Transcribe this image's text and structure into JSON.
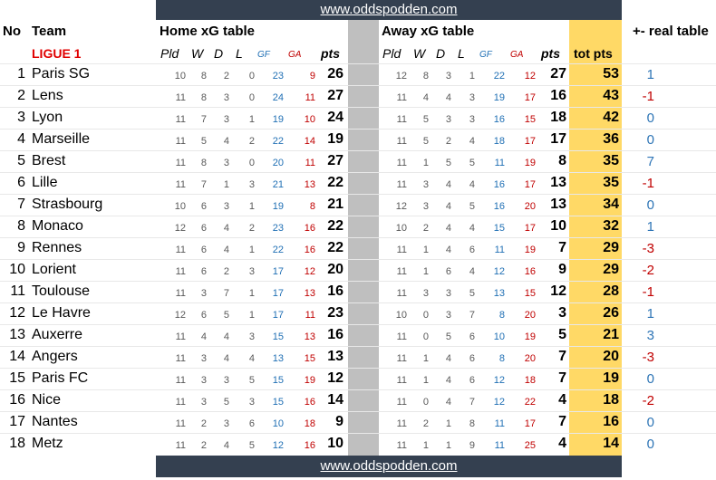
{
  "site": "www.oddspodden.com",
  "headers": {
    "no": "No",
    "team": "Team",
    "home": "Home xG table",
    "away": "Away xG table",
    "real": "+- real table"
  },
  "league": "LIGUE 1",
  "subheaders": {
    "pld": "Pld",
    "w": "W",
    "d": "D",
    "l": "L",
    "gf": "GF",
    "ga": "GA",
    "pts": "pts",
    "tot": "tot pts"
  },
  "rows": [
    {
      "no": "1",
      "team": "Paris SG",
      "h": [
        "10",
        "8",
        "2",
        "0",
        "23",
        "9",
        "26"
      ],
      "a": [
        "12",
        "8",
        "3",
        "1",
        "22",
        "12",
        "27"
      ],
      "tot": "53",
      "diff": "1"
    },
    {
      "no": "2",
      "team": "Lens",
      "h": [
        "11",
        "8",
        "3",
        "0",
        "24",
        "11",
        "27"
      ],
      "a": [
        "11",
        "4",
        "4",
        "3",
        "19",
        "17",
        "16"
      ],
      "tot": "43",
      "diff": "-1"
    },
    {
      "no": "3",
      "team": "Lyon",
      "h": [
        "11",
        "7",
        "3",
        "1",
        "19",
        "10",
        "24"
      ],
      "a": [
        "11",
        "5",
        "3",
        "3",
        "16",
        "15",
        "18"
      ],
      "tot": "42",
      "diff": "0"
    },
    {
      "no": "4",
      "team": "Marseille",
      "h": [
        "11",
        "5",
        "4",
        "2",
        "22",
        "14",
        "19"
      ],
      "a": [
        "11",
        "5",
        "2",
        "4",
        "18",
        "17",
        "17"
      ],
      "tot": "36",
      "diff": "0"
    },
    {
      "no": "5",
      "team": "Brest",
      "h": [
        "11",
        "8",
        "3",
        "0",
        "20",
        "11",
        "27"
      ],
      "a": [
        "11",
        "1",
        "5",
        "5",
        "11",
        "19",
        "8"
      ],
      "tot": "35",
      "diff": "7"
    },
    {
      "no": "6",
      "team": "Lille",
      "h": [
        "11",
        "7",
        "1",
        "3",
        "21",
        "13",
        "22"
      ],
      "a": [
        "11",
        "3",
        "4",
        "4",
        "16",
        "17",
        "13"
      ],
      "tot": "35",
      "diff": "-1"
    },
    {
      "no": "7",
      "team": "Strasbourg",
      "h": [
        "10",
        "6",
        "3",
        "1",
        "19",
        "8",
        "21"
      ],
      "a": [
        "12",
        "3",
        "4",
        "5",
        "16",
        "20",
        "13"
      ],
      "tot": "34",
      "diff": "0"
    },
    {
      "no": "8",
      "team": "Monaco",
      "h": [
        "12",
        "6",
        "4",
        "2",
        "23",
        "16",
        "22"
      ],
      "a": [
        "10",
        "2",
        "4",
        "4",
        "15",
        "17",
        "10"
      ],
      "tot": "32",
      "diff": "1"
    },
    {
      "no": "9",
      "team": "Rennes",
      "h": [
        "11",
        "6",
        "4",
        "1",
        "22",
        "16",
        "22"
      ],
      "a": [
        "11",
        "1",
        "4",
        "6",
        "11",
        "19",
        "7"
      ],
      "tot": "29",
      "diff": "-3"
    },
    {
      "no": "10",
      "team": "Lorient",
      "h": [
        "11",
        "6",
        "2",
        "3",
        "17",
        "12",
        "20"
      ],
      "a": [
        "11",
        "1",
        "6",
        "4",
        "12",
        "16",
        "9"
      ],
      "tot": "29",
      "diff": "-2"
    },
    {
      "no": "11",
      "team": "Toulouse",
      "h": [
        "11",
        "3",
        "7",
        "1",
        "17",
        "13",
        "16"
      ],
      "a": [
        "11",
        "3",
        "3",
        "5",
        "13",
        "15",
        "12"
      ],
      "tot": "28",
      "diff": "-1"
    },
    {
      "no": "12",
      "team": "Le Havre",
      "h": [
        "12",
        "6",
        "5",
        "1",
        "17",
        "11",
        "23"
      ],
      "a": [
        "10",
        "0",
        "3",
        "7",
        "8",
        "20",
        "3"
      ],
      "tot": "26",
      "diff": "1"
    },
    {
      "no": "13",
      "team": "Auxerre",
      "h": [
        "11",
        "4",
        "4",
        "3",
        "15",
        "13",
        "16"
      ],
      "a": [
        "11",
        "0",
        "5",
        "6",
        "10",
        "19",
        "5"
      ],
      "tot": "21",
      "diff": "3"
    },
    {
      "no": "14",
      "team": "Angers",
      "h": [
        "11",
        "3",
        "4",
        "4",
        "13",
        "15",
        "13"
      ],
      "a": [
        "11",
        "1",
        "4",
        "6",
        "8",
        "20",
        "7"
      ],
      "tot": "20",
      "diff": "-3"
    },
    {
      "no": "15",
      "team": "Paris FC",
      "h": [
        "11",
        "3",
        "3",
        "5",
        "15",
        "19",
        "12"
      ],
      "a": [
        "11",
        "1",
        "4",
        "6",
        "12",
        "18",
        "7"
      ],
      "tot": "19",
      "diff": "0"
    },
    {
      "no": "16",
      "team": "Nice",
      "h": [
        "11",
        "3",
        "5",
        "3",
        "15",
        "16",
        "14"
      ],
      "a": [
        "11",
        "0",
        "4",
        "7",
        "12",
        "22",
        "4"
      ],
      "tot": "18",
      "diff": "-2"
    },
    {
      "no": "17",
      "team": "Nantes",
      "h": [
        "11",
        "2",
        "3",
        "6",
        "10",
        "18",
        "9"
      ],
      "a": [
        "11",
        "2",
        "1",
        "8",
        "11",
        "17",
        "7"
      ],
      "tot": "16",
      "diff": "0"
    },
    {
      "no": "18",
      "team": "Metz",
      "h": [
        "11",
        "2",
        "4",
        "5",
        "12",
        "16",
        "10"
      ],
      "a": [
        "11",
        "1",
        "1",
        "9",
        "11",
        "25",
        "4"
      ],
      "tot": "14",
      "diff": "0"
    }
  ]
}
